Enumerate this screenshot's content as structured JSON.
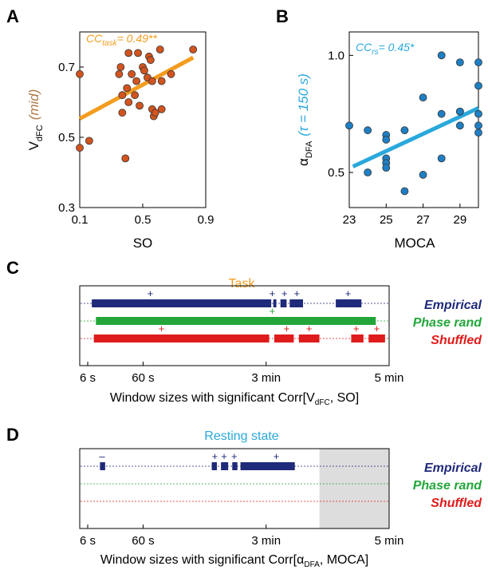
{
  "panels": {
    "A": {
      "letter": "A"
    },
    "B": {
      "letter": "B"
    },
    "C": {
      "letter": "C",
      "title": "Task"
    },
    "D": {
      "letter": "D",
      "title": "Resting state"
    }
  },
  "colors": {
    "empirical": "#1f2a7a",
    "phase_rand": "#22a63a",
    "shuffled": "#e01b1b",
    "task_title": "#f39c1f",
    "rest_title": "#2aa8dc",
    "scatter_a_fill": "#d2541f",
    "scatter_a_fit": "#f39c1f",
    "scatter_b_fill": "#1f7fc4",
    "scatter_b_fit": "#2aa8dc",
    "ylabel_mid": "#b07a4a",
    "shade": "#dddddd"
  },
  "chart_data": [
    {
      "id": "A",
      "type": "scatter",
      "annotation_main": "CC",
      "annotation_sub": "task",
      "annotation_value": "= 0.49**",
      "xlabel": "SO",
      "ylabel_main": "V",
      "ylabel_sub": "dFC",
      "ylabel_suffix": "(mid)",
      "xlim": [
        0.1,
        0.9
      ],
      "ylim": [
        0.3,
        0.8
      ],
      "xticks": [
        "0.1",
        "0.5",
        "0.9"
      ],
      "xtick_values": [
        0.1,
        0.5,
        0.9
      ],
      "yticks": [
        "0.3",
        "0.5",
        "0.7"
      ],
      "ytick_values": [
        0.3,
        0.5,
        0.7
      ],
      "x": [
        0.1,
        0.1,
        0.16,
        0.35,
        0.37,
        0.37,
        0.39,
        0.4,
        0.41,
        0.43,
        0.45,
        0.46,
        0.47,
        0.48,
        0.5,
        0.51,
        0.53,
        0.54,
        0.55,
        0.56,
        0.56,
        0.57,
        0.58,
        0.61,
        0.62,
        0.62,
        0.68,
        0.36,
        0.41,
        0.82
      ],
      "y": [
        0.68,
        0.47,
        0.49,
        0.68,
        0.62,
        0.57,
        0.44,
        0.64,
        0.6,
        0.68,
        0.62,
        0.66,
        0.74,
        0.59,
        0.7,
        0.69,
        0.67,
        0.73,
        0.72,
        0.66,
        0.58,
        0.56,
        0.57,
        0.75,
        0.66,
        0.58,
        0.68,
        0.7,
        0.74,
        0.75
      ],
      "fit": {
        "x": [
          0.1,
          0.82
        ],
        "y": [
          0.553,
          0.727
        ]
      }
    },
    {
      "id": "B",
      "type": "scatter",
      "annotation_main": "CC",
      "annotation_sub": "rs",
      "annotation_value": "= 0.45*",
      "xlabel": "MOCA",
      "ylabel_main": "α",
      "ylabel_sub": "DFA",
      "ylabel_suffix": "(τ = 150 s)",
      "xlim": [
        23,
        30
      ],
      "ylim": [
        0.35,
        1.1
      ],
      "xticks": [
        "23",
        "25",
        "27",
        "29"
      ],
      "xtick_values": [
        23,
        25,
        27,
        29
      ],
      "yticks": [
        "0.5",
        "1.0"
      ],
      "ytick_values": [
        0.5,
        1.0
      ],
      "x": [
        23,
        24,
        24,
        25,
        25,
        25,
        25,
        25,
        26,
        26,
        27,
        27,
        28,
        28,
        28,
        29,
        29,
        29,
        29,
        30,
        30,
        30,
        30,
        30
      ],
      "y": [
        0.7,
        0.68,
        0.5,
        0.66,
        0.64,
        0.56,
        0.54,
        0.52,
        0.68,
        0.42,
        0.82,
        0.49,
        0.75,
        0.56,
        1.0,
        0.76,
        0.76,
        0.97,
        0.7,
        0.67,
        0.87,
        0.75,
        0.97,
        0.7
      ],
      "fit": {
        "x": [
          23.2,
          30
        ],
        "y": [
          0.525,
          0.775
        ]
      }
    },
    {
      "id": "C",
      "type": "timeline",
      "title": "Task",
      "xlabel_pre": "Window sizes with significant Corr[V",
      "xlabel_sub": "dFC",
      "xlabel_post": ", SO]",
      "xlim_seconds": [
        6,
        300
      ],
      "xticks": [
        "6 s",
        "60 s",
        "3 min",
        "5 min"
      ],
      "xtick_values": [
        6,
        60,
        180,
        300
      ],
      "shaded": null,
      "series": [
        {
          "name": "Empirical",
          "color_key": "empirical",
          "segments": [
            [
              10,
              185
            ],
            [
              187,
              190
            ],
            [
              194,
              200
            ],
            [
              203,
              216
            ],
            [
              248,
              273
            ]
          ],
          "signs": [
            {
              "x": 67,
              "s": "+"
            },
            {
              "x": 186,
              "s": "+"
            },
            {
              "x": 198,
              "s": "+"
            },
            {
              "x": 210,
              "s": "+"
            },
            {
              "x": 260,
              "s": "+"
            }
          ]
        },
        {
          "name": "Phase rand",
          "color_key": "phase_rand",
          "segments": [
            [
              14,
              287
            ]
          ],
          "signs": [
            {
              "x": 186,
              "s": "+"
            }
          ]
        },
        {
          "name": "Shuffled",
          "color_key": "shuffled",
          "segments": [
            [
              12,
              183
            ],
            [
              188,
              207
            ],
            [
              212,
              232
            ],
            [
              263,
              275
            ],
            [
              280,
              296
            ]
          ],
          "signs": [
            {
              "x": 78,
              "s": "+"
            },
            {
              "x": 200,
              "s": "+"
            },
            {
              "x": 222,
              "s": "+"
            },
            {
              "x": 268,
              "s": "+"
            },
            {
              "x": 288,
              "s": "+"
            }
          ]
        }
      ]
    },
    {
      "id": "D",
      "type": "timeline",
      "title": "Resting state",
      "xlabel_pre": "Window sizes with significant Corr[α",
      "xlabel_sub": "DFA",
      "xlabel_post": ", MOCA]",
      "xlim_seconds": [
        6,
        300
      ],
      "xticks": [
        "6 s",
        "60 s",
        "3 min",
        "5 min"
      ],
      "xtick_values": [
        6,
        60,
        180,
        300
      ],
      "shaded": [
        232,
        300
      ],
      "series": [
        {
          "name": "Empirical",
          "color_key": "empirical",
          "segments": [
            [
              18,
              23
            ],
            [
              127,
              132
            ],
            [
              136,
              143
            ],
            [
              147,
              152
            ],
            [
              155,
              208
            ]
          ],
          "signs": [
            {
              "x": 20,
              "s": "–"
            },
            {
              "x": 130,
              "s": "+"
            },
            {
              "x": 139,
              "s": "+"
            },
            {
              "x": 149,
              "s": "+"
            },
            {
              "x": 190,
              "s": "+"
            }
          ]
        },
        {
          "name": "Phase rand",
          "color_key": "phase_rand",
          "segments": [],
          "signs": []
        },
        {
          "name": "Shuffled",
          "color_key": "shuffled",
          "segments": [],
          "signs": []
        }
      ]
    }
  ]
}
